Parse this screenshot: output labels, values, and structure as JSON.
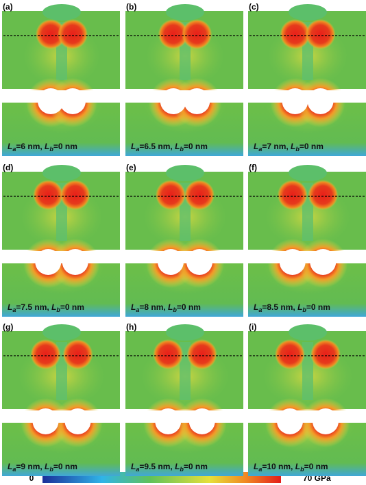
{
  "panels": [
    {
      "label": "(a)",
      "caption": [
        "L",
        "a",
        "=6 nm, ",
        "L",
        "b",
        "=0 nm"
      ]
    },
    {
      "label": "(b)",
      "caption": [
        "L",
        "a",
        "=6.5 nm, ",
        "L",
        "b",
        "=0 nm"
      ]
    },
    {
      "label": "(c)",
      "caption": [
        "L",
        "a",
        "=7 nm, ",
        "L",
        "b",
        "=0 nm"
      ]
    },
    {
      "label": "(d)",
      "caption": [
        "L",
        "a",
        "=7.5 nm, ",
        "L",
        "b",
        "=0 nm"
      ]
    },
    {
      "label": "(e)",
      "caption": [
        "L",
        "a",
        "=8 nm, ",
        "L",
        "b",
        "=0 nm"
      ]
    },
    {
      "label": "(f)",
      "caption": [
        "L",
        "a",
        "=8.5 nm, ",
        "L",
        "b",
        "=0 nm"
      ]
    },
    {
      "label": "(g)",
      "caption": [
        "L",
        "a",
        "=9 nm, ",
        "L",
        "b",
        "=0 nm"
      ]
    },
    {
      "label": "(h)",
      "caption": [
        "L",
        "a",
        "=9.5 nm, ",
        "L",
        "b",
        "=0 nm"
      ]
    },
    {
      "label": "(i)",
      "caption": [
        "L",
        "a",
        "=10 nm, ",
        "L",
        "b",
        "=0 nm"
      ]
    }
  ],
  "colorbar": {
    "min_label": "0",
    "max_label": "70 GPa"
  }
}
